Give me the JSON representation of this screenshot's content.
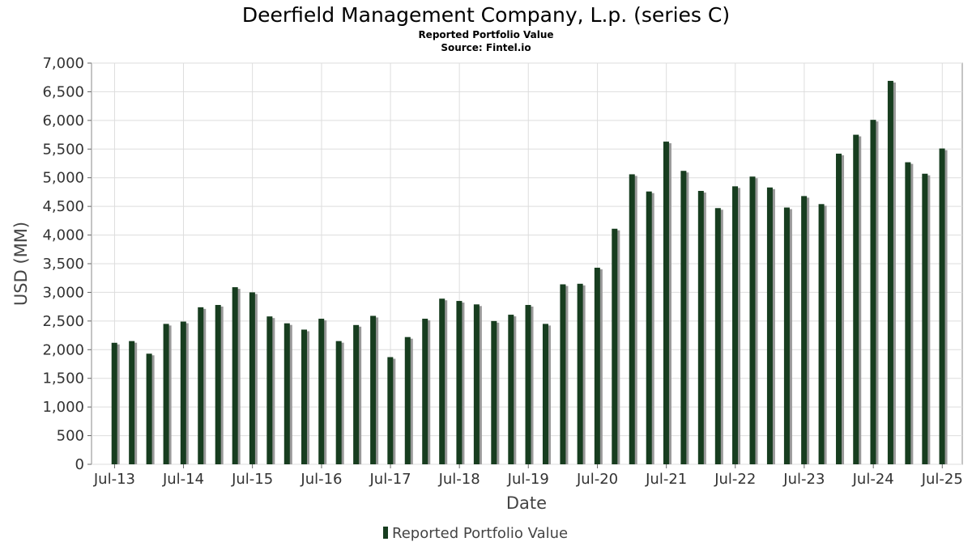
{
  "chart_data": {
    "type": "bar",
    "title": "Deerfield Management Company, L.p. (series C)",
    "subtitle": "Reported Portfolio Value",
    "source": "Source: Fintel.io",
    "xlabel": "Date",
    "ylabel": "USD (MM)",
    "ylim": [
      0,
      7000
    ],
    "yticks": [
      "0",
      "500",
      "1,000",
      "1,500",
      "2,000",
      "2,500",
      "3,000",
      "3,500",
      "4,000",
      "4,500",
      "5,000",
      "5,500",
      "6,000",
      "6,500",
      "7,000"
    ],
    "xlim": [
      "2013-03-01",
      "2025-10-15"
    ],
    "xticks": [
      {
        "date": "2013-07-01",
        "label": "Jul-13"
      },
      {
        "date": "2014-07-01",
        "label": "Jul-14"
      },
      {
        "date": "2015-07-01",
        "label": "Jul-15"
      },
      {
        "date": "2016-07-01",
        "label": "Jul-16"
      },
      {
        "date": "2017-07-01",
        "label": "Jul-17"
      },
      {
        "date": "2018-07-01",
        "label": "Jul-18"
      },
      {
        "date": "2019-07-01",
        "label": "Jul-19"
      },
      {
        "date": "2020-07-01",
        "label": "Jul-20"
      },
      {
        "date": "2021-07-01",
        "label": "Jul-21"
      },
      {
        "date": "2022-07-01",
        "label": "Jul-22"
      },
      {
        "date": "2023-07-01",
        "label": "Jul-23"
      },
      {
        "date": "2024-07-01",
        "label": "Jul-24"
      },
      {
        "date": "2025-07-01",
        "label": "Jul-25"
      }
    ],
    "grid": true,
    "legend_position": "bottom-center",
    "colors": {
      "bar": "#173d1f",
      "bar_shadow": "#999999",
      "grid": "#dddddd",
      "frame": "#888888"
    },
    "series": [
      {
        "name": "Reported Portfolio Value",
        "dates": [
          "2013-06-30",
          "2013-09-30",
          "2013-12-31",
          "2014-03-31",
          "2014-06-30",
          "2014-09-30",
          "2014-12-31",
          "2015-03-31",
          "2015-06-30",
          "2015-09-30",
          "2015-12-31",
          "2016-03-31",
          "2016-06-30",
          "2016-09-30",
          "2016-12-31",
          "2017-03-31",
          "2017-06-30",
          "2017-09-30",
          "2017-12-31",
          "2018-03-31",
          "2018-06-30",
          "2018-09-30",
          "2018-12-31",
          "2019-03-31",
          "2019-06-30",
          "2019-09-30",
          "2019-12-31",
          "2020-03-31",
          "2020-06-30",
          "2020-09-30",
          "2020-12-31",
          "2021-03-31",
          "2021-06-30",
          "2021-09-30",
          "2021-12-31",
          "2022-03-31",
          "2022-06-30",
          "2022-09-30",
          "2022-12-31",
          "2023-03-31",
          "2023-06-30",
          "2023-09-30",
          "2023-12-31",
          "2024-03-31",
          "2024-06-30",
          "2024-09-30",
          "2024-12-31",
          "2025-03-31",
          "2025-06-30"
        ],
        "values": [
          2120,
          2150,
          1930,
          2450,
          2490,
          2740,
          2780,
          3090,
          3000,
          2580,
          2460,
          2350,
          2540,
          2150,
          2430,
          2590,
          1870,
          2220,
          2540,
          2890,
          2850,
          2790,
          2500,
          2610,
          2780,
          2450,
          3140,
          3150,
          3430,
          4110,
          5060,
          4760,
          5630,
          5120,
          4770,
          4470,
          4850,
          5020,
          4830,
          4480,
          4680,
          4540,
          5420,
          5750,
          6010,
          6690,
          5270,
          5070,
          5510
        ]
      }
    ]
  }
}
